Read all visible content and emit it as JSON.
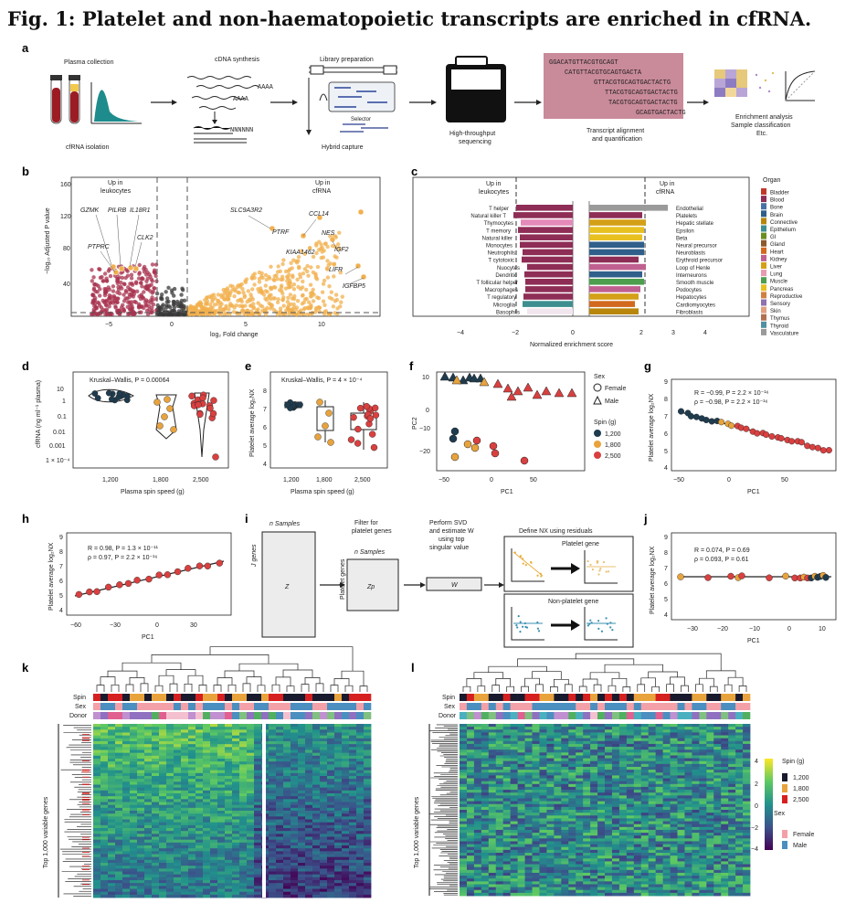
{
  "title": "Fig. 1: Platelet and non-haematopoietic transcripts are enriched in cfRNA.",
  "panel_a": {
    "steps": [
      "Plasma collection",
      "cfRNA isolation",
      "cDNA synthesis",
      "AAAA",
      "AAAA",
      "NNNNNN",
      "Library preparation",
      "Selector",
      "Hybrid capture",
      "High-throughput",
      "sequencing",
      "Transcript alignment",
      "and quantification",
      "Enrichment analysis",
      "Sample classification",
      "Etc."
    ],
    "sequences": [
      "GGACATGTTACGTGCAGT",
      "CATGTTACGTGCAGTGACTA",
      "GTTACGTGCAGTGACTACTG",
      "TTACGTGCAGTGACTACTG",
      "TACGTGCAGTGACTACTG",
      "GCAGTGACTACTG"
    ]
  },
  "panel_b": {
    "ylabel": "−log₁₀ Adjusted P value",
    "xlabel": "log₂ Fold change",
    "yticks": [
      "160",
      "120",
      "80",
      "40"
    ],
    "xticks": [
      "−5",
      "0",
      "5",
      "10"
    ],
    "left_label": [
      "Up in",
      "leukocytes"
    ],
    "right_label": [
      "Up in",
      "cfRNA"
    ],
    "genes_left": [
      "GZMK",
      "PILRB",
      "IL18R1",
      "CLK2",
      "PTPRC"
    ],
    "genes_right": [
      "SLC9A3R2",
      "CCL14",
      "PTRF",
      "NES",
      "KIAA1462",
      "IGF2",
      "LIFR",
      "IGFBP5"
    ]
  },
  "panel_c": {
    "left_label": [
      "Up in",
      "leukocytes"
    ],
    "right_label": [
      "Up in",
      "cfRNA"
    ],
    "xlabel": "Normalized enrichment score",
    "xticks": [
      "−4",
      "−2",
      "0",
      "2",
      "3",
      "4"
    ],
    "left_cells": [
      "T helper",
      "Natural killer T",
      "Thymocytes",
      "T memory",
      "Natural killer",
      "Monocytes",
      "Neutrophils",
      "T cytotoxic",
      "Nuocytes",
      "Dendritic",
      "T follicular helper",
      "Macrophages",
      "T regulatory",
      "Microglia",
      "Basophils"
    ],
    "right_cells": [
      "Endothelial",
      "Platelets",
      "Hepatic stellate",
      "Epsilon",
      "Beta",
      "Neural precursor",
      "Neuroblasts",
      "Erythroid precursor",
      "Loop of Henle",
      "Interneurons",
      "Smooth muscle",
      "Podocytes",
      "Hepatocytes",
      "Cardiomyocytes",
      "Fibroblasts"
    ],
    "legend_title": "Organ",
    "organs": [
      "Bladder",
      "Blood",
      "Bone",
      "Brain",
      "Connective",
      "Epithelium",
      "GI",
      "Gland",
      "Heart",
      "Kidney",
      "Liver",
      "Lung",
      "Muscle",
      "Pancreas",
      "Reproductive",
      "Sensory",
      "Skin",
      "Thymus",
      "Thyroid",
      "Vasculature"
    ],
    "organ_colors": [
      "#c0392b",
      "#8e2d56",
      "#4a6fa5",
      "#2f5f8a",
      "#b8860b",
      "#3d8f8f",
      "#6b8e23",
      "#8b5a2b",
      "#d2691e",
      "#c06090",
      "#d4a017",
      "#e89ab0",
      "#4d9e4d",
      "#e8c020",
      "#d08040",
      "#9070b0",
      "#e0a080",
      "#b07050",
      "#5090a0",
      "#9a9a9a"
    ]
  },
  "panel_d": {
    "test": "Kruskal–Wallis, P = 0.00064",
    "ylabel": "cfRNA (ng ml⁻¹ plasma)",
    "xlabel": "Plasma spin speed (g)",
    "yticks": [
      "10",
      "1",
      "0.1",
      "0.01",
      "0.001",
      "1 × 10⁻⁴"
    ],
    "xticks": [
      "1,200",
      "1,800",
      "2,500"
    ]
  },
  "panel_e": {
    "test": "Kruskal–Wallis, P = 4 × 10⁻⁴",
    "ylabel": "Platelet average log₂NX",
    "xlabel": "Plasma spin speed (g)",
    "yticks": [
      "8",
      "7",
      "6",
      "5",
      "4"
    ],
    "xticks": [
      "1,200",
      "1,800",
      "2,500"
    ]
  },
  "panel_f": {
    "ylabel": "PC2",
    "xlabel": "PC1",
    "yticks": [
      "10",
      "0",
      "−10",
      "−20"
    ],
    "xticks": [
      "−50",
      "0",
      "50"
    ],
    "sex_title": "Sex",
    "sex": [
      "Female",
      "Male"
    ],
    "spin_title": "Spin (g)",
    "spin": [
      "1,200",
      "1,800",
      "2,500"
    ],
    "spin_colors": [
      "#1f3c4f",
      "#e8a33d",
      "#d94040"
    ]
  },
  "panel_g": {
    "stats": [
      "R = −0.99, P = 2.2 × 10⁻¹⁶",
      "ρ = −0.98, P = 2.2 × 10⁻¹⁶"
    ],
    "ylabel": "Platelet average log₂NX",
    "xlabel": "PC1",
    "yticks": [
      "9",
      "8",
      "7",
      "6",
      "5",
      "4"
    ],
    "xticks": [
      "−50",
      "0",
      "50"
    ]
  },
  "panel_h": {
    "stats": [
      "R = 0.98, P = 1.3 × 10⁻¹¹",
      "ρ = 0.97, P = 2.2 × 10⁻¹⁶"
    ],
    "ylabel": "Platelet average log₂NX",
    "xlabel": "PC1",
    "yticks": [
      "9",
      "8",
      "7",
      "6",
      "5",
      "4"
    ],
    "xticks": [
      "−60",
      "−30",
      "0",
      "30"
    ]
  },
  "panel_i": {
    "n_samples": "n Samples",
    "j_genes": "J genes",
    "z": "Z",
    "filter": [
      "Filter for",
      "platelet genes"
    ],
    "platelet_genes": "Platelet genes",
    "zp": "Zp",
    "svd": [
      "Perform SVD",
      "and estimate W",
      "using top",
      "singular value"
    ],
    "w": "W",
    "define": "Define NX using residuals",
    "platelet_gene": "Platelet gene",
    "non_platelet_gene": "Non-platelet gene"
  },
  "panel_j": {
    "stats": [
      "R = 0.074, P = 0.69",
      "ρ = 0.093, P = 0.61"
    ],
    "ylabel": "Platelet average log₂NX",
    "xlabel": "PC1",
    "yticks": [
      "9",
      "8",
      "7",
      "6",
      "5",
      "4"
    ],
    "xticks": [
      "−30",
      "−20",
      "−10",
      "0",
      "10"
    ]
  },
  "panel_k": {
    "rows": [
      "Spin",
      "Sex",
      "Donor"
    ],
    "ylabel": "Top 1,000 variable genes"
  },
  "panel_l": {
    "rows": [
      "Spin",
      "Sex",
      "Donor"
    ],
    "ylabel": "Top 1,000 variable genes",
    "cbar": [
      "4",
      "2",
      "0",
      "−2",
      "−4"
    ],
    "spin_title": "Spin (g)",
    "spin": [
      "1,200",
      "1,800",
      "2,500"
    ],
    "sex_title": "Sex",
    "sex": [
      "Female",
      "Male"
    ]
  },
  "panel_labels": [
    "a",
    "b",
    "c",
    "d",
    "e",
    "f",
    "g",
    "h",
    "i",
    "j",
    "k",
    "l"
  ]
}
